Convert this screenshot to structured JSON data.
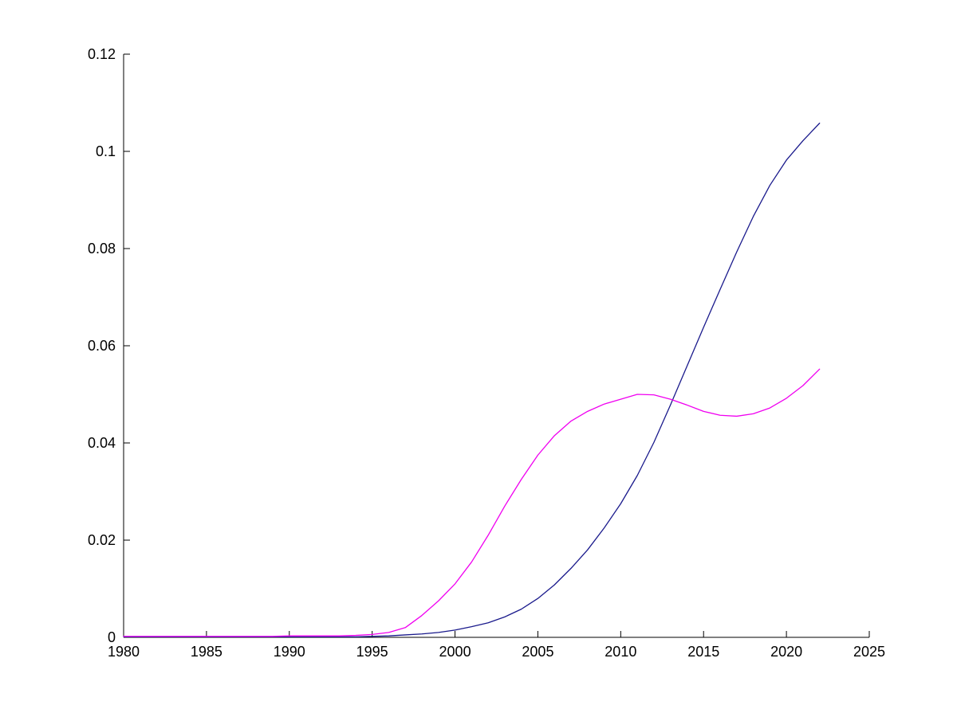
{
  "chart_data": {
    "type": "line",
    "title": "",
    "xlabel": "",
    "ylabel": "",
    "grid": false,
    "legend": "none",
    "xlim": [
      1980,
      2025
    ],
    "ylim": [
      0,
      0.12
    ],
    "xticks": [
      1980,
      1985,
      1990,
      1995,
      2000,
      2005,
      2010,
      2015,
      2020,
      2025
    ],
    "xtick_labels": [
      "1980",
      "1985",
      "1990",
      "1995",
      "2000",
      "2005",
      "2010",
      "2015",
      "2020",
      "2025"
    ],
    "yticks": [
      0,
      0.02,
      0.04,
      0.06,
      0.08,
      0.1,
      0.12
    ],
    "ytick_labels": [
      "0",
      "0.02",
      "0.04",
      "0.06",
      "0.08",
      "0.1",
      "0.12"
    ],
    "axis_color": "#000000",
    "x": [
      1980,
      1981,
      1982,
      1983,
      1984,
      1985,
      1986,
      1987,
      1988,
      1989,
      1990,
      1991,
      1992,
      1993,
      1994,
      1995,
      1996,
      1997,
      1998,
      1999,
      2000,
      2001,
      2002,
      2003,
      2004,
      2005,
      2006,
      2007,
      2008,
      2009,
      2010,
      2011,
      2012,
      2013,
      2014,
      2015,
      2016,
      2017,
      2018,
      2019,
      2020,
      2021,
      2022
    ],
    "series": [
      {
        "name": "dark-blue-series",
        "color": "#1a1a8c",
        "values": [
          0.0001,
          0.0001,
          0.0001,
          0.0001,
          0.0001,
          0.0001,
          0.0001,
          0.0001,
          0.0001,
          0.0001,
          0.0001,
          0.0001,
          0.0001,
          0.0001,
          0.0001,
          0.0002,
          0.0003,
          0.0005,
          0.0007,
          0.001,
          0.0015,
          0.0022,
          0.003,
          0.0042,
          0.0058,
          0.008,
          0.0108,
          0.0142,
          0.018,
          0.0225,
          0.0275,
          0.0333,
          0.0401,
          0.0478,
          0.0558,
          0.0638,
          0.0716,
          0.0793,
          0.0866,
          0.093,
          0.0982,
          0.1022,
          0.1058
        ]
      },
      {
        "name": "magenta-series",
        "color": "#f000f0",
        "values": [
          0.0002,
          0.0002,
          0.0002,
          0.0002,
          0.0002,
          0.0002,
          0.0002,
          0.0002,
          0.0002,
          0.0002,
          0.0003,
          0.0003,
          0.0003,
          0.0003,
          0.0004,
          0.0006,
          0.001,
          0.002,
          0.0045,
          0.0075,
          0.011,
          0.0155,
          0.021,
          0.027,
          0.0325,
          0.0375,
          0.0415,
          0.0445,
          0.0465,
          0.048,
          0.049,
          0.05,
          0.0499,
          0.049,
          0.0478,
          0.0465,
          0.0457,
          0.0455,
          0.046,
          0.0472,
          0.0492,
          0.0518,
          0.0552
        ]
      }
    ]
  }
}
